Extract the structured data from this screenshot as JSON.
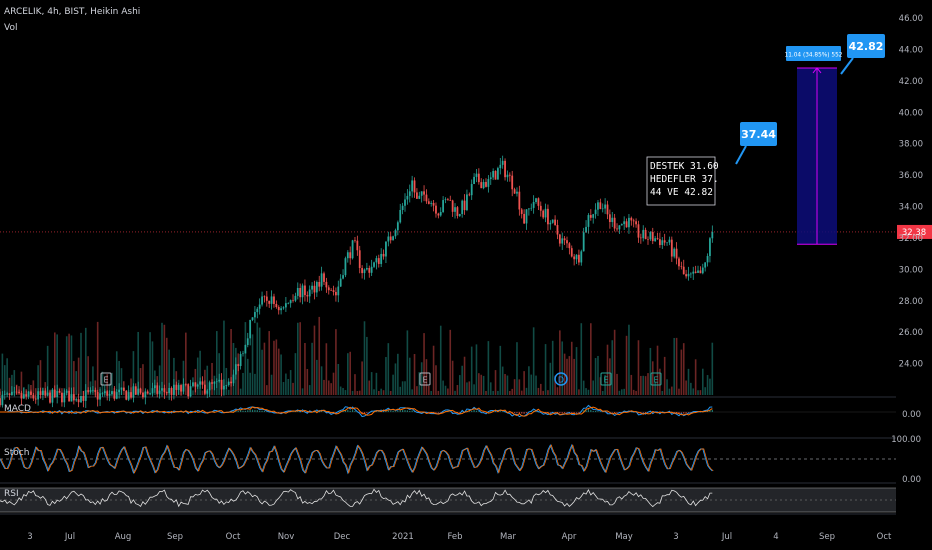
{
  "header": {
    "symbol_line": "ARCELIK, 4h, BIST, Heikin Ashi",
    "volume_label": "Vol"
  },
  "panes": {
    "macd_label": "MACD",
    "stoch_label": "Stoch",
    "rsi_label": "RSI"
  },
  "colors": {
    "up": "#26a69a",
    "down": "#ef5350",
    "macd": "#2196f3",
    "signal": "#ff6d00",
    "accent_blue": "#2196f3",
    "last_price_bg": "#f23645",
    "target_fill": "#0d0d7a",
    "target_line": "#d500f9"
  },
  "chart_data": {
    "type": "candlestick",
    "title": "ARCELIK, 4h, BIST, Heikin Ashi",
    "y_axis": {
      "min": 22,
      "max": 46,
      "ticks": [
        "46.00",
        "44.00",
        "42.00",
        "40.00",
        "38.00",
        "36.00",
        "34.00",
        "32.00",
        "30.00",
        "28.00",
        "26.00",
        "24.00"
      ]
    },
    "x_ticks": [
      "3",
      "Jul",
      "Aug",
      "Sep",
      "Oct",
      "Nov",
      "Dec",
      "2021",
      "Feb",
      "Mar",
      "Apr",
      "May",
      "3",
      "Jul",
      "4",
      "Sep",
      "Oct"
    ],
    "price_path": [
      [
        0,
        21.8
      ],
      [
        0.12,
        22.0
      ],
      [
        0.2,
        22.3
      ],
      [
        0.245,
        22.6
      ],
      [
        0.26,
        23.2
      ],
      [
        0.27,
        24.8
      ],
      [
        0.285,
        27.6
      ],
      [
        0.3,
        28.1
      ],
      [
        0.315,
        27.4
      ],
      [
        0.33,
        28.6
      ],
      [
        0.345,
        28.5
      ],
      [
        0.36,
        29.6
      ],
      [
        0.375,
        28.4
      ],
      [
        0.385,
        30.5
      ],
      [
        0.395,
        31.6
      ],
      [
        0.405,
        29.8
      ],
      [
        0.42,
        30.4
      ],
      [
        0.435,
        31.9
      ],
      [
        0.45,
        34.1
      ],
      [
        0.46,
        35.6
      ],
      [
        0.465,
        34.3
      ],
      [
        0.475,
        34.8
      ],
      [
        0.49,
        33.7
      ],
      [
        0.5,
        34.5
      ],
      [
        0.51,
        33.6
      ],
      [
        0.52,
        34.2
      ],
      [
        0.53,
        35.7
      ],
      [
        0.545,
        35.5
      ],
      [
        0.56,
        36.6
      ],
      [
        0.575,
        35.2
      ],
      [
        0.585,
        33.1
      ],
      [
        0.595,
        34.4
      ],
      [
        0.61,
        33.4
      ],
      [
        0.625,
        32.0
      ],
      [
        0.635,
        31.3
      ],
      [
        0.645,
        30.6
      ],
      [
        0.655,
        33.2
      ],
      [
        0.67,
        34.3
      ],
      [
        0.68,
        33.2
      ],
      [
        0.69,
        32.8
      ],
      [
        0.7,
        33.1
      ],
      [
        0.715,
        32.1
      ],
      [
        0.73,
        32.0
      ],
      [
        0.745,
        31.7
      ],
      [
        0.755,
        30.6
      ],
      [
        0.765,
        29.4
      ],
      [
        0.775,
        29.5
      ],
      [
        0.785,
        29.8
      ],
      [
        0.795,
        32.38
      ]
    ],
    "last_price": "32.38",
    "annotation_text": [
      "DESTEK 31.60",
      "HEDEFLER 37.",
      "44 VE 42.82"
    ],
    "callouts": [
      "37.44",
      "42.82"
    ],
    "measure_label": "11.04 (34.85%) 552",
    "target_box": {
      "from": 31.6,
      "to": 42.82
    },
    "volume_event_markers": [
      "E",
      "E",
      "D",
      "E",
      "E"
    ],
    "macd_level": "0.00",
    "stoch_levels": [
      "100.00",
      "0.00"
    ]
  }
}
